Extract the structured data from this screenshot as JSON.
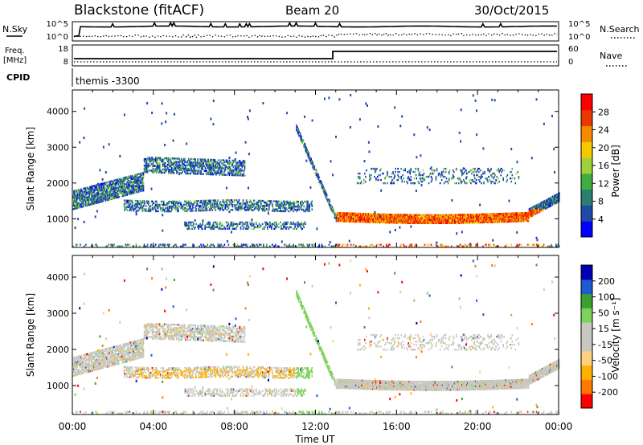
{
  "header": {
    "station": "Blackstone (fitACF)",
    "beam": "Beam 20",
    "date": "30/Oct/2015"
  },
  "nsky_panel": {
    "left_label": "N.Sky",
    "right_label": "N.Search",
    "left_ticks": [
      "10^5",
      "10^0"
    ],
    "right_ticks": [
      "10^5",
      "10^0"
    ]
  },
  "freq_panel": {
    "left_label_1": "Freq.",
    "left_label_2": "[MHz]",
    "right_label": "Nave",
    "left_ticks": [
      "18",
      "8"
    ],
    "right_ticks": [
      "60",
      "0"
    ]
  },
  "cpid_panel": {
    "label": "CPID",
    "program": "themis -3300"
  },
  "chart_data": [
    {
      "type": "heatmap",
      "name": "power",
      "ylabel": "Slant Range [km]",
      "ylim": [
        200,
        4600
      ],
      "yticks": [
        "1000",
        "2000",
        "3000",
        "4000"
      ],
      "xlim": [
        0,
        24
      ],
      "colorbar_label": "Power [dB]",
      "colorbar_ticks": [
        "4",
        "8",
        "12",
        "16",
        "20",
        "24",
        "28"
      ],
      "colors": [
        "#0000ff",
        "#1e4aa8",
        "#2a7f6e",
        "#3fae3f",
        "#9fd23a",
        "#f5c800",
        "#f58a00",
        "#e83a00",
        "#ff0000"
      ]
    },
    {
      "type": "heatmap",
      "name": "velocity",
      "ylabel": "Slant Range [km]",
      "xlabel": "Time UT",
      "ylim": [
        200,
        4600
      ],
      "yticks": [
        "1000",
        "2000",
        "3000",
        "4000"
      ],
      "xlim": [
        0,
        24
      ],
      "xticks": [
        "00:00",
        "04:00",
        "08:00",
        "12:00",
        "16:00",
        "20:00",
        "00:00"
      ],
      "colorbar_label": "Velocity [m s⁻¹]",
      "colorbar_ticks": [
        "200",
        "100",
        "50",
        "15",
        "-15",
        "-50",
        "-100",
        "-200"
      ],
      "colors": [
        "#ff0000",
        "#ff7800",
        "#ffb000",
        "#ffd080",
        "#c8c8c0",
        "#c8c8c0",
        "#7ed25a",
        "#3aa030",
        "#1e5ad2",
        "#0000b4"
      ]
    }
  ]
}
